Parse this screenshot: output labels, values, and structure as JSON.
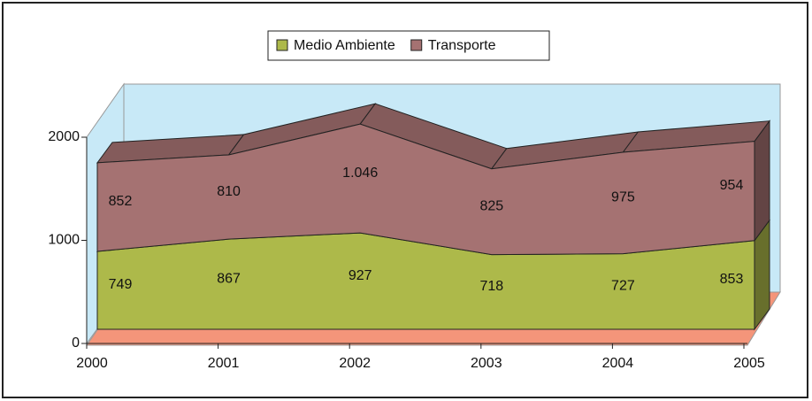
{
  "chart_data": {
    "type": "area3d",
    "stacked": true,
    "categories": [
      "2000",
      "2001",
      "2002",
      "2003",
      "2004",
      "2005"
    ],
    "series": [
      {
        "name": "Medio Ambiente",
        "color": "#adb94a",
        "values": [
          749,
          867,
          927,
          718,
          727,
          853
        ]
      },
      {
        "name": "Transporte",
        "color": "#a57272",
        "values": [
          852,
          810,
          1046,
          825,
          975,
          954
        ],
        "value_labels": [
          "852",
          "810",
          "1.046",
          "825",
          "975",
          "954"
        ]
      }
    ],
    "ylim": [
      0,
      2000
    ],
    "yticks": [
      0,
      1000,
      2000
    ],
    "legend": "top"
  }
}
